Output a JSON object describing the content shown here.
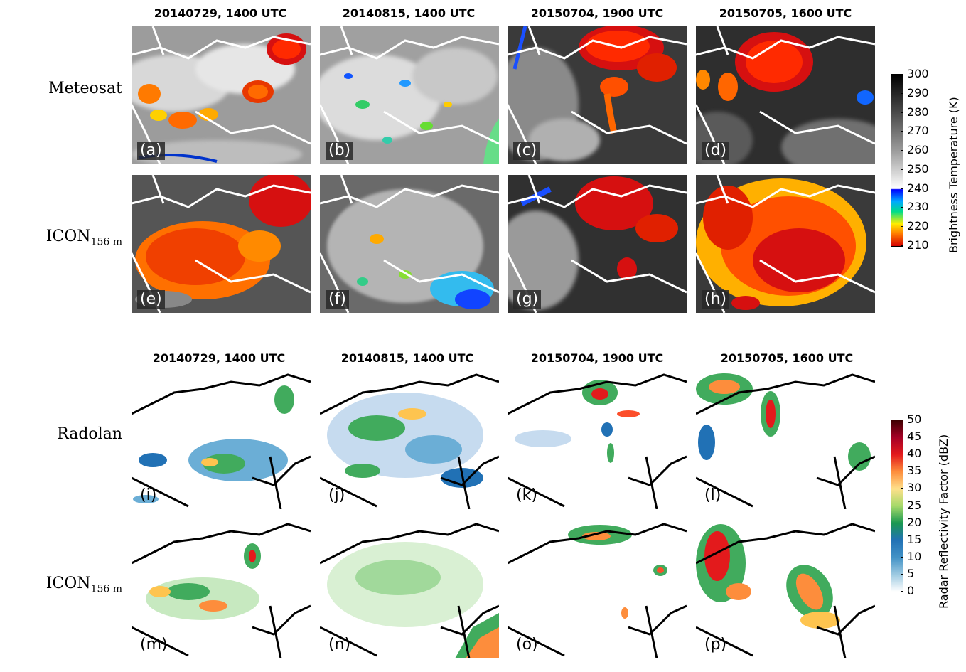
{
  "satellite_block": {
    "column_titles": [
      "20140729, 1400 UTC",
      "20140815, 1400 UTC",
      "20150704, 1900 UTC",
      "20150705, 1600 UTC"
    ],
    "row_labels": [
      {
        "main": "Meteosat",
        "sub": ""
      },
      {
        "main": "ICON",
        "sub": "156 m"
      }
    ],
    "panel_labels": [
      "(a)",
      "(b)",
      "(c)",
      "(d)",
      "(e)",
      "(f)",
      "(g)",
      "(h)"
    ],
    "colorbar": {
      "title": "Brightness Temperature (K)",
      "ticks": [
        "300",
        "290",
        "280",
        "270",
        "260",
        "250",
        "240",
        "230",
        "220",
        "210"
      ]
    }
  },
  "radar_block": {
    "column_titles": [
      "20140729, 1400 UTC",
      "20140815, 1400 UTC",
      "20150704, 1900 UTC",
      "20150705, 1600 UTC"
    ],
    "row_labels": [
      {
        "main": "Radolan",
        "sub": ""
      },
      {
        "main": "ICON",
        "sub": "156 m"
      }
    ],
    "panel_labels": [
      "(i)",
      "(j)",
      "(k)",
      "(l)",
      "(m)",
      "(n)",
      "(o)",
      "(p)"
    ],
    "colorbar": {
      "title": "Radar Reflectivity Factor (dBZ)",
      "ticks": [
        "50",
        "45",
        "40",
        "35",
        "30",
        "25",
        "20",
        "15",
        "10",
        "5",
        "0"
      ]
    }
  }
}
